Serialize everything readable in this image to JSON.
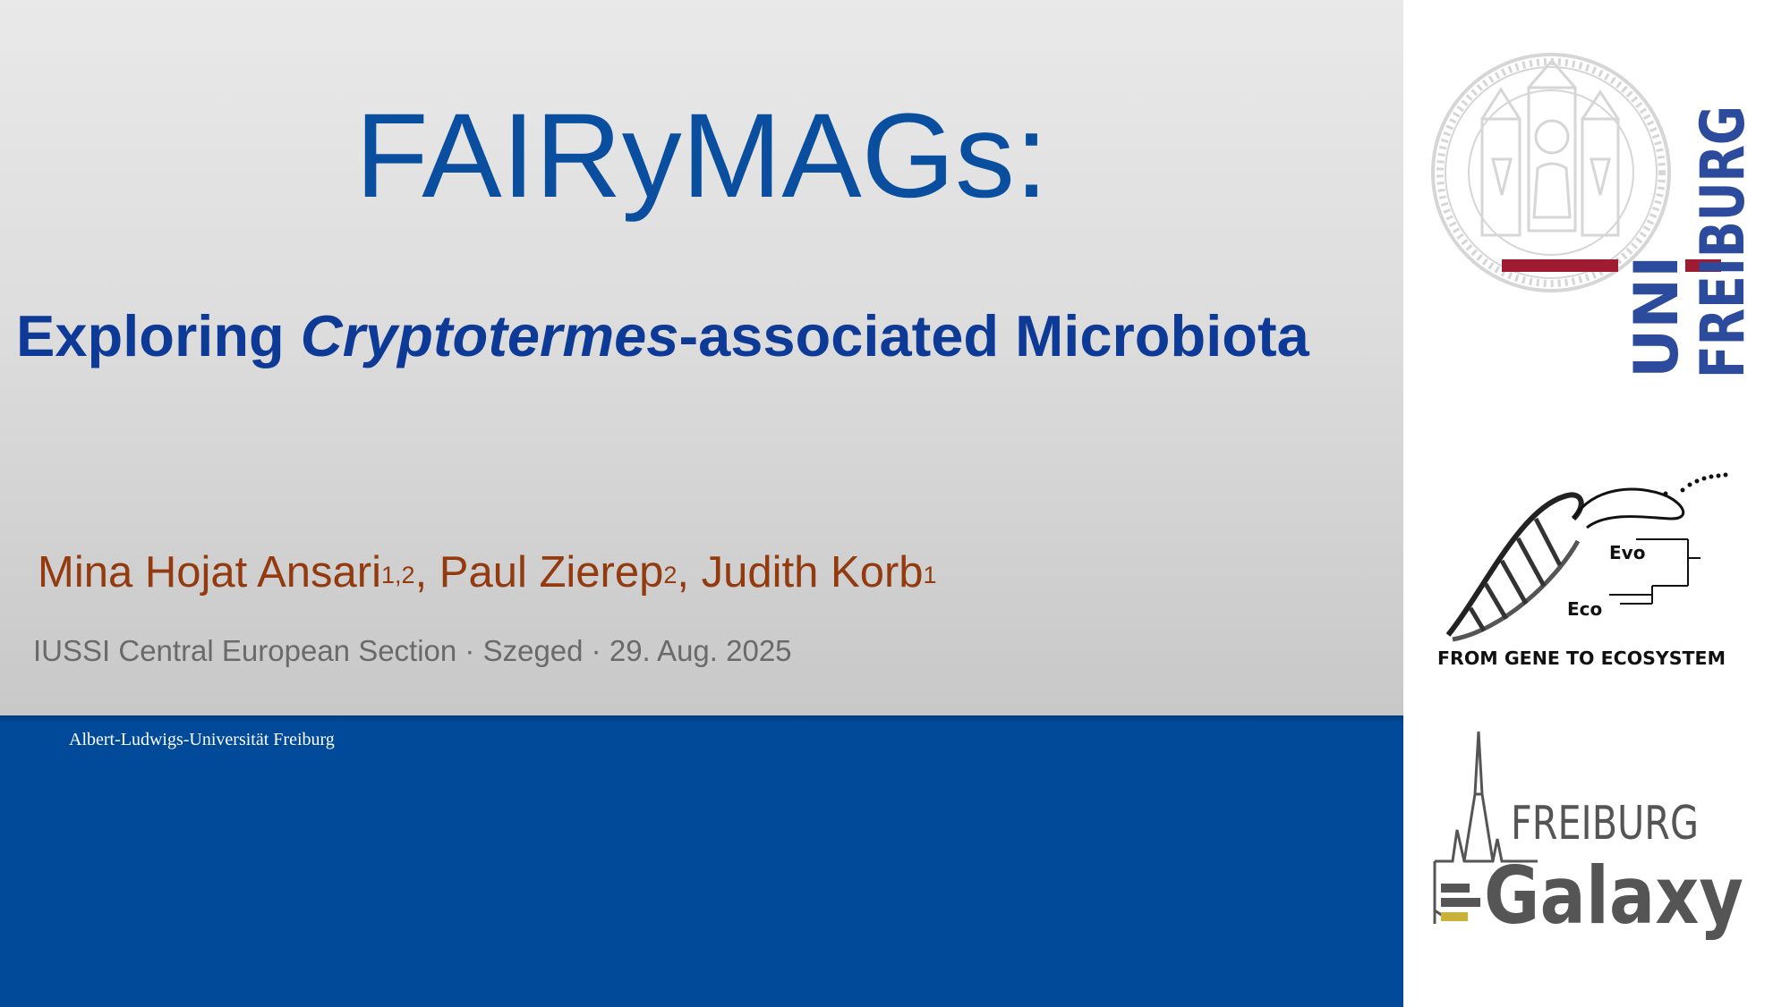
{
  "slide": {
    "title": "FAIRyMAGs:",
    "subtitle": {
      "part1": "Exploring ",
      "italic": "Cryptotermes",
      "part2": "-associated Microbiota"
    },
    "authors": [
      {
        "name": "Mina Hojat Ansari",
        "affil": "1,2",
        "sep": ", "
      },
      {
        "name": "Paul Zierep",
        "affil": "2",
        "sep": ", "
      },
      {
        "name": "Judith Korb",
        "affil": "1",
        "sep": ""
      }
    ],
    "event": "IUSSI Central European Section · Szeged · 29. Aug. 2025",
    "footer_institution": "Albert-Ludwigs-Universität Freiburg"
  },
  "logos": {
    "uni_freiburg": {
      "line1": "UNI",
      "line2": "FREIBURG"
    },
    "evo_eco": {
      "evo": "Evo",
      "eco": "Eco",
      "tagline": "FROM GENE TO ECOSYSTEM"
    },
    "freiburg_galaxy": {
      "line1": "FREIBURG",
      "line2": "Galaxy"
    }
  },
  "colors": {
    "title_blue": "#0a4f9f",
    "subtitle_blue": "#0d3a96",
    "author_brown": "#933a0e",
    "band_blue": "#004a99",
    "uni_blue": "#2c4b9c",
    "uni_red": "#9e1b32"
  }
}
